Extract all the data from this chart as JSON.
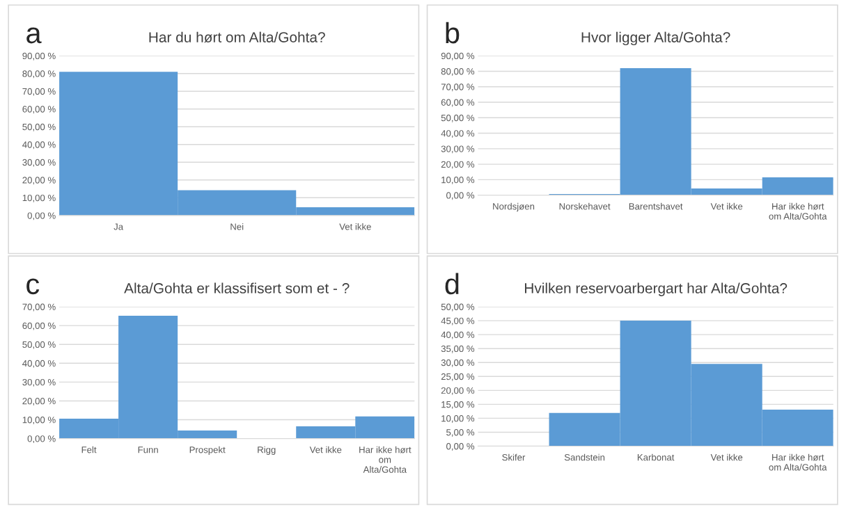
{
  "chart_data": [
    {
      "type": "bar",
      "title": "Har du hørt om Alta/Gohta?",
      "annotations": [
        "a"
      ],
      "categories": [
        "Ja",
        "Nei",
        "Vet ikke"
      ],
      "color": "#5b9bd5",
      "values": [
        81,
        14.2,
        4.6
      ],
      "ylim": [
        0,
        90
      ],
      "yticks": [
        {
          "value": 0,
          "label": "0,00 %"
        },
        {
          "value": 10,
          "label": "10,00 %"
        },
        {
          "value": 20,
          "label": "20,00 %"
        },
        {
          "value": 30,
          "label": "30,00 %"
        },
        {
          "value": 40,
          "label": "40,00 %"
        },
        {
          "value": 50,
          "label": "50,00 %"
        },
        {
          "value": 60,
          "label": "60,00 %"
        },
        {
          "value": 70,
          "label": "70,00 %"
        },
        {
          "value": 80,
          "label": "80,00 %"
        },
        {
          "value": 90,
          "label": "90,00 %"
        }
      ],
      "grid": "y",
      "legend": false
    },
    {
      "type": "bar",
      "title": "Hvor ligger Alta/Gohta?",
      "annotations": [
        "b"
      ],
      "categories": [
        "Nordsjøen",
        "Norskehavet",
        "Barentshavet",
        "Vet ikke",
        "Har ikke hørt\nom Alta/Gohta"
      ],
      "color": "#5b9bd5",
      "values": [
        0,
        0.7,
        82,
        4.3,
        11.5
      ],
      "ylim": [
        0,
        90
      ],
      "yticks": [
        {
          "value": 0,
          "label": "0,00 %"
        },
        {
          "value": 10,
          "label": "10,00 %"
        },
        {
          "value": 20,
          "label": "20,00 %"
        },
        {
          "value": 30,
          "label": "30,00 %"
        },
        {
          "value": 40,
          "label": "40,00 %"
        },
        {
          "value": 50,
          "label": "50,00 %"
        },
        {
          "value": 60,
          "label": "60,00 %"
        },
        {
          "value": 70,
          "label": "70,00 %"
        },
        {
          "value": 80,
          "label": "80,00 %"
        },
        {
          "value": 90,
          "label": "90,00 %"
        }
      ],
      "grid": "y",
      "legend": false
    },
    {
      "type": "bar",
      "title": "Alta/Gohta er klassifisert som et - ?",
      "annotations": [
        "c"
      ],
      "categories": [
        "Felt",
        "Funn",
        "Prospekt",
        "Rigg",
        "Vet ikke",
        "Har ikke hørt\nom\nAlta/Gohta"
      ],
      "color": "#5b9bd5",
      "values": [
        10.6,
        65.2,
        4.3,
        0,
        6.5,
        11.8
      ],
      "ylim": [
        0,
        70
      ],
      "yticks": [
        {
          "value": 0,
          "label": "0,00 %"
        },
        {
          "value": 10,
          "label": "10,00 %"
        },
        {
          "value": 20,
          "label": "20,00 %"
        },
        {
          "value": 30,
          "label": "30,00 %"
        },
        {
          "value": 40,
          "label": "40,00 %"
        },
        {
          "value": 50,
          "label": "50,00 %"
        },
        {
          "value": 60,
          "label": "60,00 %"
        },
        {
          "value": 70,
          "label": "70,00 %"
        }
      ],
      "grid": "y",
      "legend": false
    },
    {
      "type": "bar",
      "title": "Hvilken reservoarbergart har Alta/Gohta?",
      "annotations": [
        "d"
      ],
      "categories": [
        "Skifer",
        "Sandstein",
        "Karbonat",
        "Vet ikke",
        "Har ikke hørt\nom Alta/Gohta"
      ],
      "color": "#5b9bd5",
      "values": [
        0,
        11.9,
        45,
        29.5,
        13.1
      ],
      "ylim": [
        0,
        50
      ],
      "yticks": [
        {
          "value": 0,
          "label": "0,00 %"
        },
        {
          "value": 5,
          "label": "5,00 %"
        },
        {
          "value": 10,
          "label": "10,00 %"
        },
        {
          "value": 15,
          "label": "15,00 %"
        },
        {
          "value": 20,
          "label": "20,00 %"
        },
        {
          "value": 25,
          "label": "25,00 %"
        },
        {
          "value": 30,
          "label": "30,00 %"
        },
        {
          "value": 35,
          "label": "35,00 %"
        },
        {
          "value": 40,
          "label": "40,00 %"
        },
        {
          "value": 45,
          "label": "45,00 %"
        },
        {
          "value": 50,
          "label": "50,00 %"
        }
      ],
      "grid": "y",
      "legend": false
    }
  ]
}
